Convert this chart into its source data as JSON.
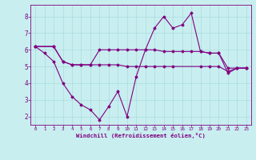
{
  "xlabel": "Windchill (Refroidissement éolien,°C)",
  "background_color": "#c8eef0",
  "line_color": "#800080",
  "grid_color": "#aadddd",
  "xlim": [
    -0.5,
    23.5
  ],
  "ylim": [
    1.5,
    8.7
  ],
  "yticks": [
    2,
    3,
    4,
    5,
    6,
    7,
    8
  ],
  "xticks": [
    0,
    1,
    2,
    3,
    4,
    5,
    6,
    7,
    8,
    9,
    10,
    11,
    12,
    13,
    14,
    15,
    16,
    17,
    18,
    19,
    20,
    21,
    22,
    23
  ],
  "series1_x": [
    0,
    2,
    3,
    4,
    5,
    6,
    7,
    8,
    9,
    10,
    11,
    12,
    13,
    14,
    15,
    18,
    19,
    20,
    21,
    22,
    23
  ],
  "series1_y": [
    6.2,
    6.2,
    5.3,
    5.1,
    5.1,
    5.1,
    5.1,
    5.1,
    5.1,
    5.0,
    5.0,
    5.0,
    5.0,
    5.0,
    5.0,
    5.0,
    5.0,
    5.0,
    4.7,
    4.9,
    4.9
  ],
  "series2_x": [
    0,
    1,
    2,
    3,
    4,
    5,
    6,
    7,
    8,
    9,
    10,
    11,
    12,
    13,
    14,
    15,
    16,
    17,
    18,
    19,
    20,
    21,
    22,
    23
  ],
  "series2_y": [
    6.2,
    5.8,
    5.3,
    4.0,
    3.2,
    2.7,
    2.4,
    1.8,
    2.6,
    3.5,
    2.0,
    4.4,
    6.0,
    7.3,
    8.0,
    7.3,
    7.5,
    8.2,
    5.9,
    5.8,
    5.8,
    4.6,
    4.9,
    4.9
  ],
  "series3_x": [
    0,
    2,
    3,
    4,
    5,
    6,
    7,
    8,
    9,
    10,
    11,
    12,
    13,
    14,
    15,
    16,
    17,
    18,
    19,
    20,
    21,
    22,
    23
  ],
  "series3_y": [
    6.2,
    6.2,
    5.3,
    5.1,
    5.1,
    5.1,
    6.0,
    6.0,
    6.0,
    6.0,
    6.0,
    6.0,
    6.0,
    5.9,
    5.9,
    5.9,
    5.9,
    5.9,
    5.8,
    5.8,
    4.9,
    4.9,
    4.9
  ]
}
